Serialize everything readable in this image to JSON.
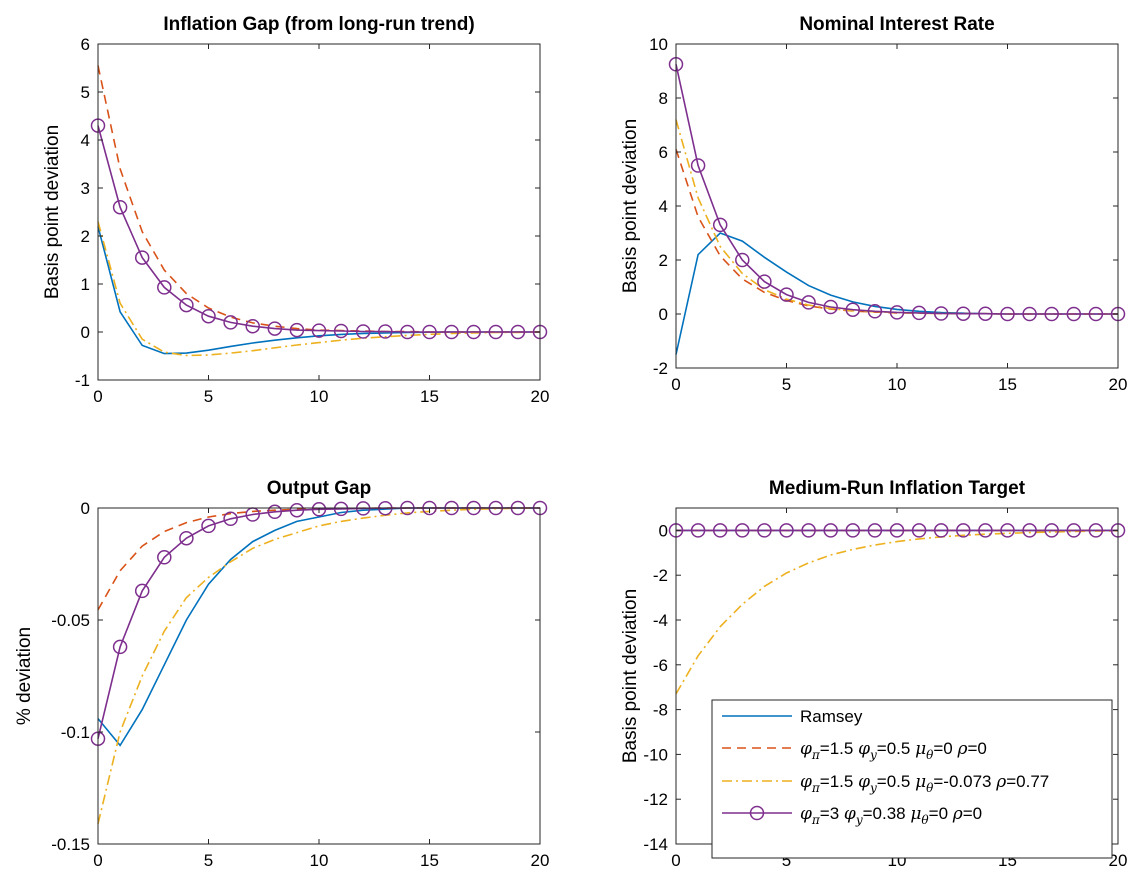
{
  "chart_data": [
    {
      "type": "line",
      "title": "Inflation Gap (from long-run trend)",
      "ylabel": "Basis point deviation",
      "xlabel": "",
      "xlim": [
        0,
        20
      ],
      "ylim": [
        -1,
        6
      ],
      "xticks": [
        0,
        5,
        10,
        15,
        20
      ],
      "yticks": [
        -1,
        0,
        1,
        2,
        3,
        4,
        5,
        6
      ],
      "ytick_labels": [
        "-1",
        "0",
        "1",
        "2",
        "3",
        "4",
        "5",
        "6"
      ],
      "x": [
        0,
        1,
        2,
        3,
        4,
        5,
        6,
        7,
        8,
        9,
        10,
        11,
        12,
        13,
        14,
        15,
        16,
        17,
        18,
        19,
        20
      ],
      "series": [
        {
          "name": "Ramsey",
          "values": [
            2.2,
            0.42,
            -0.28,
            -0.45,
            -0.44,
            -0.38,
            -0.3,
            -0.23,
            -0.17,
            -0.12,
            -0.08,
            -0.05,
            -0.03,
            -0.02,
            -0.01,
            -0.005,
            0,
            0,
            0,
            0,
            0
          ]
        },
        {
          "name": "phi_pi=1.5 phi_y=0.5 mu_theta=0 rho=0",
          "values": [
            5.55,
            3.4,
            2.09,
            1.29,
            0.8,
            0.5,
            0.31,
            0.19,
            0.12,
            0.07,
            0.04,
            0.03,
            0.02,
            0.01,
            0.01,
            0,
            0,
            0,
            0,
            0,
            0
          ]
        },
        {
          "name": "phi_pi=1.5 phi_y=0.5 mu_theta=-0.073 rho=0.77",
          "values": [
            2.3,
            0.6,
            -0.15,
            -0.42,
            -0.49,
            -0.48,
            -0.44,
            -0.39,
            -0.33,
            -0.27,
            -0.22,
            -0.17,
            -0.13,
            -0.1,
            -0.07,
            -0.05,
            -0.03,
            -0.02,
            -0.01,
            -0.01,
            0
          ]
        },
        {
          "name": "phi_pi=3 phi_y=0.38 mu_theta=0 rho=0",
          "values": [
            4.3,
            2.6,
            1.55,
            0.93,
            0.56,
            0.33,
            0.2,
            0.12,
            0.07,
            0.04,
            0.03,
            0.02,
            0.01,
            0.01,
            0,
            0,
            0,
            0,
            0,
            0,
            0
          ]
        }
      ]
    },
    {
      "type": "line",
      "title": "Nominal Interest Rate",
      "ylabel": "Basis point deviation",
      "xlabel": "",
      "xlim": [
        0,
        20
      ],
      "ylim": [
        -2,
        10
      ],
      "xticks": [
        0,
        5,
        10,
        15,
        20
      ],
      "yticks": [
        -2,
        0,
        2,
        4,
        6,
        8,
        10
      ],
      "ytick_labels": [
        "-2",
        "0",
        "2",
        "4",
        "6",
        "8",
        "10"
      ],
      "x": [
        0,
        1,
        2,
        3,
        4,
        5,
        6,
        7,
        8,
        9,
        10,
        11,
        12,
        13,
        14,
        15,
        16,
        17,
        18,
        19,
        20
      ],
      "series": [
        {
          "name": "Ramsey",
          "values": [
            -1.5,
            2.2,
            3.0,
            2.7,
            2.1,
            1.55,
            1.05,
            0.7,
            0.45,
            0.28,
            0.17,
            0.1,
            0.05,
            0.03,
            0.01,
            0,
            0,
            0,
            0,
            0,
            0
          ]
        },
        {
          "name": "phi_pi=1.5 phi_y=0.5 mu_theta=0 rho=0",
          "values": [
            6.1,
            3.6,
            2.15,
            1.3,
            0.8,
            0.5,
            0.3,
            0.18,
            0.11,
            0.07,
            0.04,
            0.03,
            0.02,
            0.01,
            0.01,
            0,
            0,
            0,
            0,
            0,
            0
          ]
        },
        {
          "name": "phi_pi=1.5 phi_y=0.5 mu_theta=-0.073 rho=0.77",
          "values": [
            7.2,
            4.3,
            2.5,
            1.5,
            0.9,
            0.55,
            0.33,
            0.2,
            0.12,
            0.08,
            0.05,
            0.03,
            0.02,
            0.01,
            0.01,
            0,
            0,
            0,
            0,
            0,
            0
          ]
        },
        {
          "name": "phi_pi=3 phi_y=0.38 mu_theta=0 rho=0",
          "values": [
            9.25,
            5.5,
            3.3,
            2.0,
            1.2,
            0.72,
            0.43,
            0.26,
            0.16,
            0.1,
            0.06,
            0.04,
            0.02,
            0.01,
            0.01,
            0,
            0,
            0,
            0,
            0,
            0
          ]
        }
      ]
    },
    {
      "type": "line",
      "title": "Output Gap",
      "ylabel": "% deviation",
      "xlabel": "",
      "xlim": [
        0,
        20
      ],
      "ylim": [
        -0.15,
        0
      ],
      "xticks": [
        0,
        5,
        10,
        15,
        20
      ],
      "yticks": [
        -0.15,
        -0.1,
        -0.05,
        0
      ],
      "ytick_labels": [
        "-0.15",
        "-0.1",
        "-0.05",
        "0"
      ],
      "x": [
        0,
        1,
        2,
        3,
        4,
        5,
        6,
        7,
        8,
        9,
        10,
        11,
        12,
        13,
        14,
        15,
        16,
        17,
        18,
        19,
        20
      ],
      "series": [
        {
          "name": "Ramsey",
          "values": [
            -0.094,
            -0.106,
            -0.09,
            -0.07,
            -0.05,
            -0.034,
            -0.023,
            -0.015,
            -0.01,
            -0.006,
            -0.004,
            -0.002,
            -0.001,
            -0.0005,
            0,
            0,
            0,
            0,
            0,
            0,
            0
          ]
        },
        {
          "name": "phi_pi=1.5 phi_y=0.5 mu_theta=0 rho=0",
          "values": [
            -0.0455,
            -0.028,
            -0.017,
            -0.0105,
            -0.0065,
            -0.004,
            -0.0025,
            -0.0015,
            -0.001,
            -0.0006,
            -0.0004,
            -0.0002,
            -0.0001,
            0,
            0,
            0,
            0,
            0,
            0,
            0,
            0
          ]
        },
        {
          "name": "phi_pi=1.5 phi_y=0.5 mu_theta=-0.073 rho=0.77",
          "values": [
            -0.141,
            -0.1,
            -0.075,
            -0.055,
            -0.04,
            -0.031,
            -0.024,
            -0.018,
            -0.014,
            -0.011,
            -0.008,
            -0.006,
            -0.0045,
            -0.0032,
            -0.0022,
            -0.0015,
            -0.001,
            -0.0006,
            -0.0003,
            -0.0001,
            0
          ]
        },
        {
          "name": "phi_pi=3 phi_y=0.38 mu_theta=0 rho=0",
          "values": [
            -0.103,
            -0.062,
            -0.037,
            -0.022,
            -0.0135,
            -0.008,
            -0.0048,
            -0.0029,
            -0.0017,
            -0.001,
            -0.0006,
            -0.0004,
            -0.0002,
            -0.0001,
            0,
            0,
            0,
            0,
            0,
            0,
            0
          ]
        }
      ]
    },
    {
      "type": "line",
      "title": "Medium-Run Inflation Target",
      "ylabel": "Basis point deviation",
      "xlabel": "",
      "xlim": [
        0,
        20
      ],
      "ylim": [
        -14,
        1
      ],
      "xticks": [
        0,
        5,
        10,
        15,
        20
      ],
      "yticks": [
        -14,
        -12,
        -10,
        -8,
        -6,
        -4,
        -2,
        0
      ],
      "ytick_labels": [
        "-14",
        "-12",
        "-10",
        "-8",
        "-6",
        "-4",
        "-2",
        "0"
      ],
      "x": [
        0,
        1,
        2,
        3,
        4,
        5,
        6,
        7,
        8,
        9,
        10,
        11,
        12,
        13,
        14,
        15,
        16,
        17,
        18,
        19,
        20
      ],
      "series": [
        {
          "name": "Ramsey",
          "values": [
            0,
            0,
            0,
            0,
            0,
            0,
            0,
            0,
            0,
            0,
            0,
            0,
            0,
            0,
            0,
            0,
            0,
            0,
            0,
            0,
            0
          ]
        },
        {
          "name": "phi_pi=1.5 phi_y=0.5 mu_theta=0 rho=0",
          "values": [
            0,
            0,
            0,
            0,
            0,
            0,
            0,
            0,
            0,
            0,
            0,
            0,
            0,
            0,
            0,
            0,
            0,
            0,
            0,
            0,
            0
          ]
        },
        {
          "name": "phi_pi=1.5 phi_y=0.5 mu_theta=-0.073 rho=0.77",
          "values": [
            -7.3,
            -5.6,
            -4.3,
            -3.3,
            -2.5,
            -1.9,
            -1.45,
            -1.1,
            -0.85,
            -0.65,
            -0.5,
            -0.38,
            -0.29,
            -0.22,
            -0.17,
            -0.13,
            -0.1,
            -0.07,
            -0.05,
            -0.03,
            -0.02
          ]
        },
        {
          "name": "phi_pi=3 phi_y=0.38 mu_theta=0 rho=0",
          "values": [
            0,
            0,
            0,
            0,
            0,
            0,
            0,
            0,
            0,
            0,
            0,
            0,
            0,
            0,
            0,
            0,
            0,
            0,
            0,
            0,
            0
          ]
        }
      ],
      "legend": {
        "placement": "bottom-right",
        "entries": [
          {
            "label": "Ramsey"
          },
          {
            "sym1": "φ",
            "sub1": "π",
            "t1": "=1.5 ",
            "sym2": "φ",
            "sub2": "y",
            "t2": "=0.5 ",
            "sym3": "μ",
            "sub3": "θ",
            "t3": "=0 ",
            "sym4": "ρ",
            "t4": "=0"
          },
          {
            "sym1": "φ",
            "sub1": "π",
            "t1": "=1.5 ",
            "sym2": "φ",
            "sub2": "y",
            "t2": "=0.5 ",
            "sym3": "μ",
            "sub3": "θ",
            "t3": "=-0.073 ",
            "sym4": "ρ",
            "t4": "=0.77"
          },
          {
            "sym1": "φ",
            "sub1": "π",
            "t1": "=3 ",
            "sym2": "φ",
            "sub2": "y",
            "t2": "=0.38 ",
            "sym3": "μ",
            "sub3": "θ",
            "t3": "=0 ",
            "sym4": "ρ",
            "t4": "=0"
          }
        ]
      }
    }
  ],
  "styles": [
    {
      "color": "#0072BD",
      "dash": "",
      "marker": "none"
    },
    {
      "color": "#D95319",
      "dash": "9,6",
      "marker": "none"
    },
    {
      "color": "#EDB120",
      "dash": "10,4,2,4",
      "marker": "none"
    },
    {
      "color": "#7E2F8E",
      "dash": "",
      "marker": "circle"
    }
  ]
}
